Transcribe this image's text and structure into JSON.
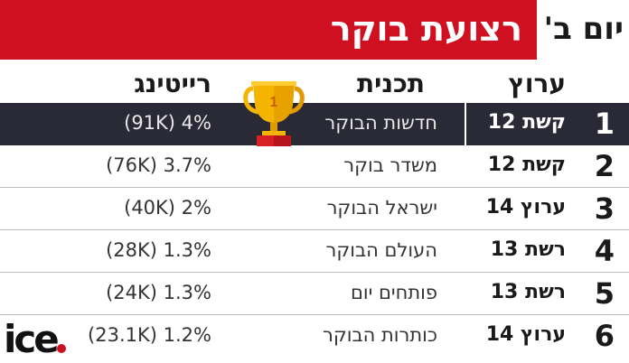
{
  "header": {
    "title": "רצועת בוקר",
    "day": "יום ב'"
  },
  "columns": {
    "channel": "ערוץ",
    "program": "תכנית",
    "rating": "רייטינג"
  },
  "rows": [
    {
      "rank": "1",
      "channel": "קשת 12",
      "program": "חדשות הבוקר",
      "rating": "(91K) 4%"
    },
    {
      "rank": "2",
      "channel": "קשת 12",
      "program": "משדר בוקר",
      "rating": "(76K) 3.7%"
    },
    {
      "rank": "3",
      "channel": "ערוץ 14",
      "program": "ישראל הבוקר",
      "rating": "(40K) 2%"
    },
    {
      "rank": "4",
      "channel": "רשת 13",
      "program": "העולם הבוקר",
      "rating": "(28K) 1.3%"
    },
    {
      "rank": "5",
      "channel": "רשת 13",
      "program": "פותחים יום",
      "rating": "(24K) 1.3%"
    },
    {
      "rank": "6",
      "channel": "ערוץ 14",
      "program": "כותרות הבוקר",
      "rating": "(23.1K) 1.2%"
    }
  ],
  "trophy": {
    "number": "1",
    "icon": "trophy-icon"
  },
  "logo": {
    "text": "ice",
    "dot_color": "#cf1020"
  },
  "colors": {
    "accent": "#cf1020",
    "highlight_row": "#2a2a37",
    "trophy_gold": "#f5b400"
  }
}
